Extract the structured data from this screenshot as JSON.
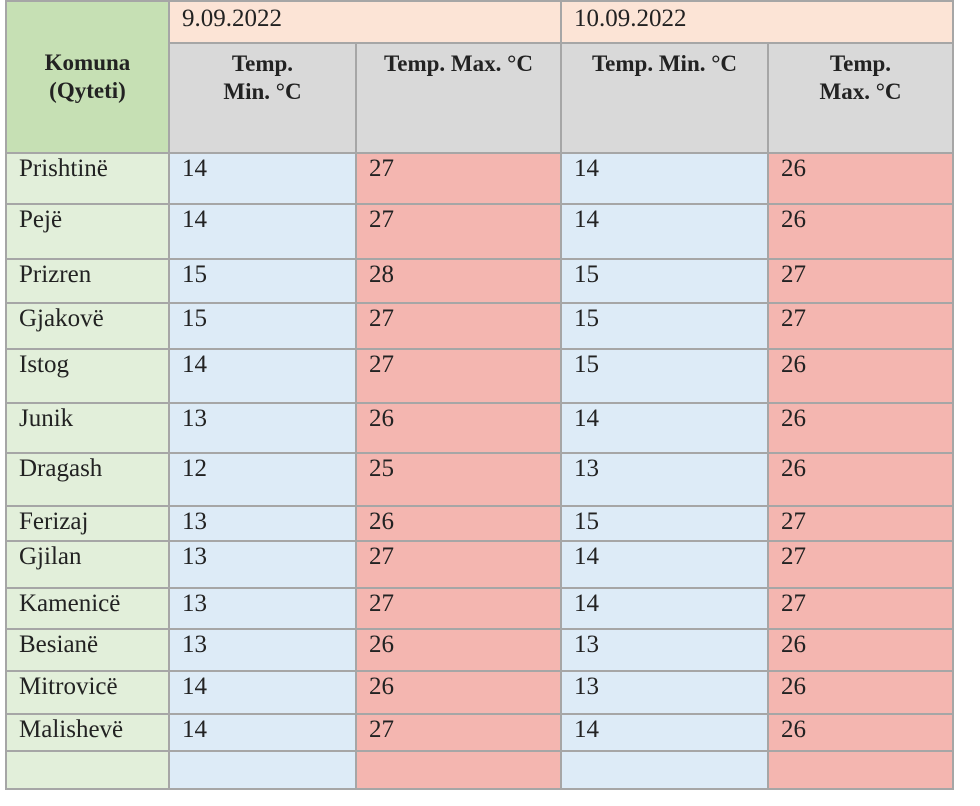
{
  "header": {
    "city_column": "Komuna (Qyteti)",
    "dates": [
      "9.09.2022",
      "10.09.2022"
    ],
    "columns": [
      "Temp. Min. °C",
      "Temp. Max. °C",
      "Temp. Min. °C",
      "Temp. Max. °C"
    ]
  },
  "table": {
    "rows": [
      [
        "Prishtinë",
        14,
        27,
        14,
        26
      ],
      [
        "Pejë",
        14,
        27,
        14,
        26
      ],
      [
        "Prizren",
        15,
        28,
        15,
        27
      ],
      [
        "Gjakovë",
        15,
        27,
        15,
        27
      ],
      [
        "Istog",
        14,
        27,
        15,
        26
      ],
      [
        "Junik",
        13,
        26,
        14,
        26
      ],
      [
        "Dragash",
        12,
        25,
        13,
        26
      ],
      [
        "Ferizaj",
        13,
        26,
        15,
        27
      ],
      [
        "Gjilan",
        13,
        27,
        14,
        27
      ],
      [
        "Kamenicë",
        13,
        27,
        14,
        27
      ],
      [
        "Besianë",
        13,
        26,
        13,
        26
      ],
      [
        "Mitrovicë",
        14,
        26,
        13,
        26
      ],
      [
        "Malishevë",
        14,
        27,
        14,
        26
      ]
    ]
  }
}
